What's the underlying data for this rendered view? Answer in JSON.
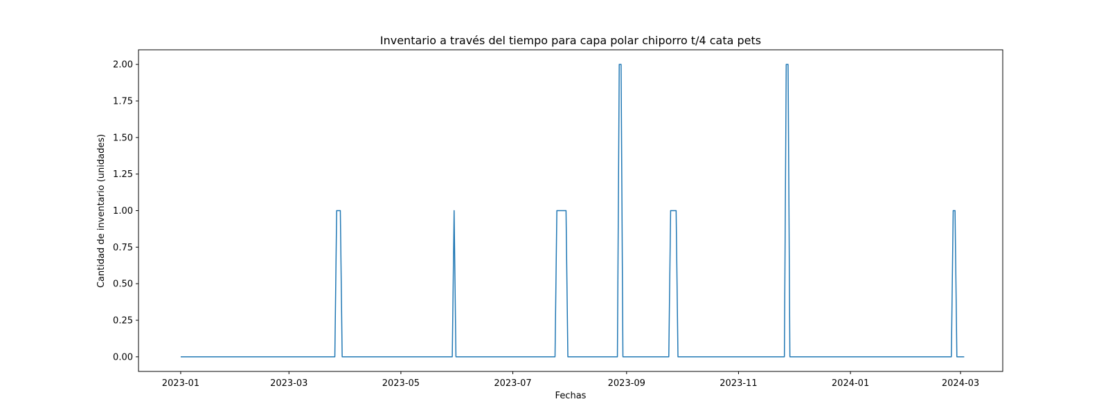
{
  "chart_data": {
    "type": "line",
    "title": "Inventario a través del tiempo para capa polar chiporro t/4 cata pets",
    "xlabel": "Fechas",
    "ylabel": "Cantidad de inventario (unidades)",
    "xlim": [
      "2022-12-09",
      "2024-03-24"
    ],
    "ylim": [
      -0.1,
      2.1
    ],
    "x_ticks": [
      "2023-01",
      "2023-03",
      "2023-05",
      "2023-07",
      "2023-09",
      "2023-11",
      "2024-01",
      "2024-03"
    ],
    "y_ticks": [
      "0.00",
      "0.25",
      "0.50",
      "0.75",
      "1.00",
      "1.25",
      "1.50",
      "1.75",
      "2.00"
    ],
    "grid": false,
    "series": [
      {
        "color": "#1f77b4",
        "x": [
          "2023-01-01",
          "2023-03-26",
          "2023-03-27",
          "2023-03-29",
          "2023-03-30",
          "2023-05-29",
          "2023-05-30",
          "2023-05-31",
          "2023-07-24",
          "2023-07-25",
          "2023-07-30",
          "2023-07-31",
          "2023-08-27",
          "2023-08-28",
          "2023-08-29",
          "2023-08-30",
          "2023-09-24",
          "2023-09-25",
          "2023-09-28",
          "2023-09-29",
          "2023-11-26",
          "2023-11-27",
          "2023-11-28",
          "2023-11-29",
          "2024-02-25",
          "2024-02-26",
          "2024-02-27",
          "2024-02-28",
          "2024-03-03"
        ],
        "y": [
          0,
          0,
          1,
          1,
          0,
          0,
          1,
          0,
          0,
          1,
          1,
          0,
          0,
          2,
          2,
          0,
          0,
          1,
          1,
          0,
          0,
          2,
          2,
          0,
          0,
          1,
          1,
          0,
          0
        ]
      }
    ]
  }
}
